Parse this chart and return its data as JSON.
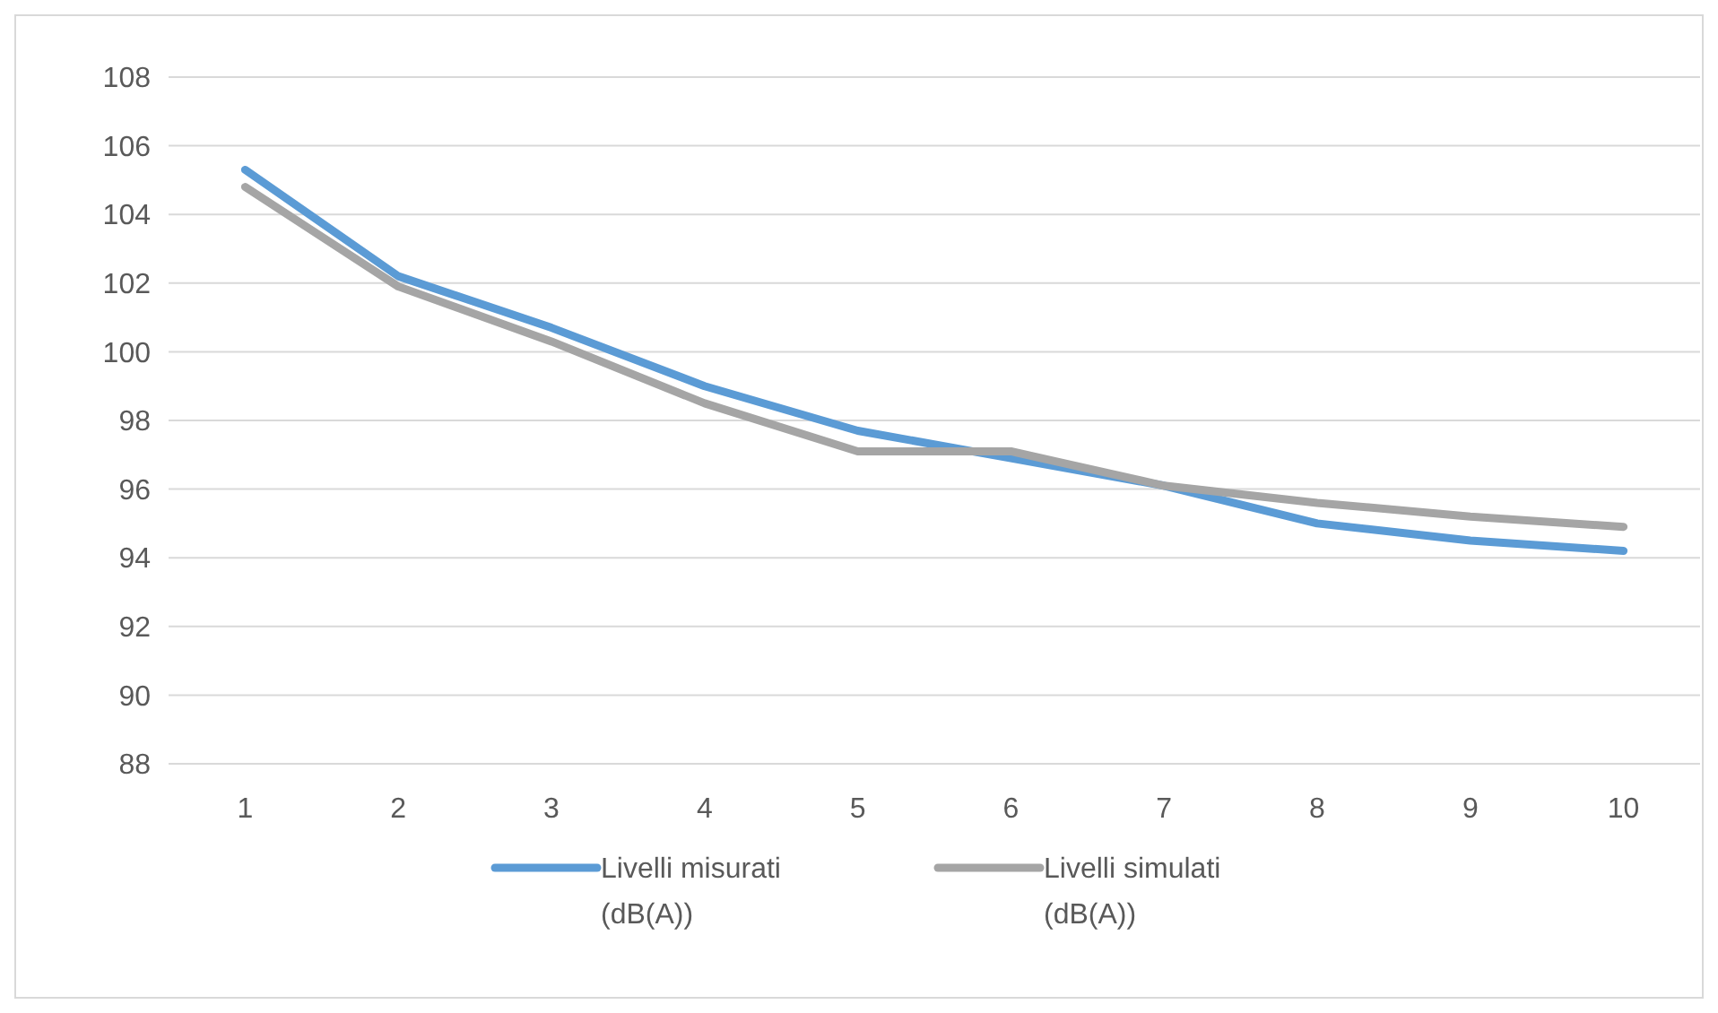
{
  "chart_data": {
    "type": "line",
    "categories": [
      "1",
      "2",
      "3",
      "4",
      "5",
      "6",
      "7",
      "8",
      "9",
      "10"
    ],
    "series": [
      {
        "name": "Livelli misurati (dB(A))",
        "color": "#5b9bd5",
        "values": [
          105.3,
          102.2,
          100.7,
          99.0,
          97.7,
          96.9,
          96.1,
          95.0,
          94.5,
          94.2
        ]
      },
      {
        "name": "Livelli simulati (dB(A))",
        "color": "#a5a5a5",
        "values": [
          104.8,
          101.9,
          100.3,
          98.5,
          97.1,
          97.1,
          96.1,
          95.6,
          95.2,
          94.9
        ]
      }
    ],
    "ylim": [
      88,
      108
    ],
    "yticks": [
      88,
      90,
      92,
      94,
      96,
      98,
      100,
      102,
      104,
      106,
      108
    ],
    "grid": "y",
    "legend": "bottom",
    "marker": "none",
    "line_style": "solid"
  }
}
